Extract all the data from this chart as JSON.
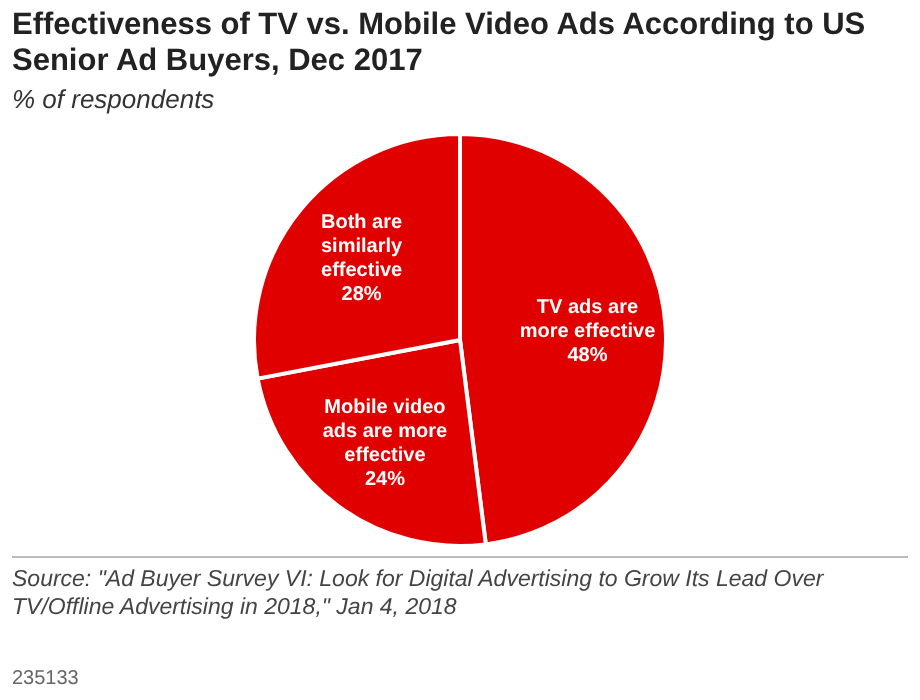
{
  "chart_data": {
    "type": "pie",
    "title": "Effectiveness of TV vs. Mobile Video Ads According to US Senior Ad Buyers, Dec 2017",
    "subtitle": "% of respondents",
    "categories": [
      "TV ads are more effective",
      "Mobile video ads are more effective",
      "Both are similarly effective"
    ],
    "values": [
      48,
      24,
      28
    ],
    "colors": [
      "#e10000",
      "#e10000",
      "#e10000"
    ],
    "value_labels": [
      "48%",
      "24%",
      "28%"
    ],
    "legend": false,
    "annotations": [
      "Source: \"Ad Buyer Survey VI: Look for Digital Advertising to Grow Its Lead Over TV/Offline Advertising in 2018,\" Jan 4, 2018",
      "235133"
    ]
  }
}
